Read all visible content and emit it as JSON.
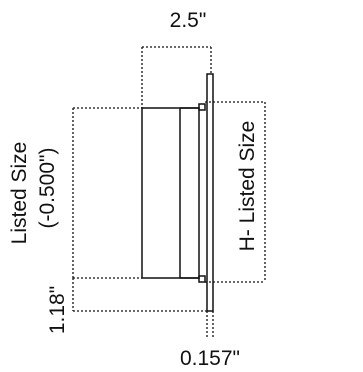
{
  "dimensions": {
    "top_width": "2.5\"",
    "left_height_line1": "Listed Size",
    "left_height_line2": "(-0.500\")",
    "right_height": "H- Listed Size",
    "bottom_left": "1.18\"",
    "bottom_thickness": "0.157\""
  },
  "colors": {
    "line": "#111111",
    "background": "#ffffff"
  }
}
